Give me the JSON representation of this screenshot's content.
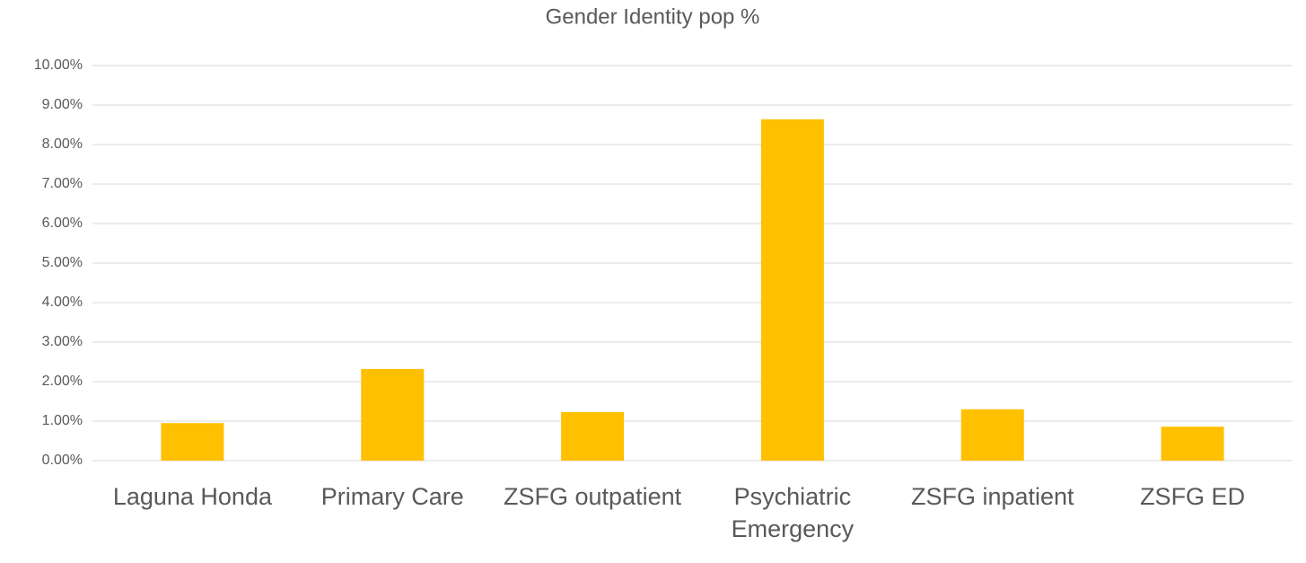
{
  "chart_data": {
    "type": "bar",
    "title": "Gender Identity pop %",
    "categories": [
      "Laguna Honda",
      "Primary Care",
      "ZSFG outpatient",
      "Psychiatric Emergency",
      "ZSFG inpatient",
      "ZSFG ED"
    ],
    "values": [
      0.95,
      2.32,
      1.23,
      8.64,
      1.3,
      0.86
    ],
    "color": "#ffc000",
    "ylim": [
      0,
      10
    ],
    "yticks": [
      {
        "value": 0,
        "label": "0.00%"
      },
      {
        "value": 1,
        "label": "1.00%"
      },
      {
        "value": 2,
        "label": "2.00%"
      },
      {
        "value": 3,
        "label": "3.00%"
      },
      {
        "value": 4,
        "label": "4.00%"
      },
      {
        "value": 5,
        "label": "5.00%"
      },
      {
        "value": 6,
        "label": "6.00%"
      },
      {
        "value": 7,
        "label": "7.00%"
      },
      {
        "value": 8,
        "label": "8.00%"
      },
      {
        "value": 9,
        "label": "9.00%"
      },
      {
        "value": 10,
        "label": "10.00%"
      }
    ],
    "grid": true
  }
}
